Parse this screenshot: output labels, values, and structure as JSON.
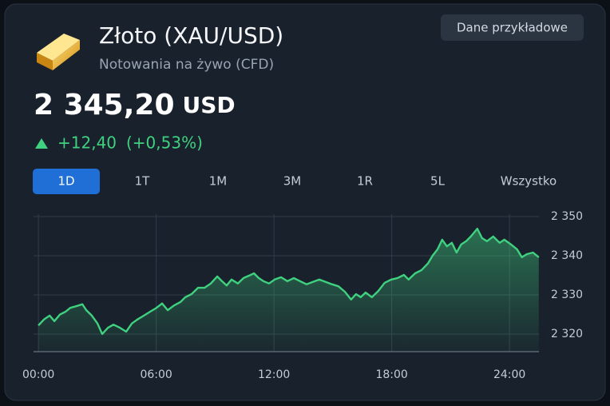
{
  "header": {
    "title": "Złoto (XAU/USD)",
    "subtitle": "Notowania na żywo (CFD)",
    "badge": "Dane przykładowe"
  },
  "quote": {
    "price": "2 345,20",
    "currency": "USD",
    "change": "+12,40",
    "change_pct": "(+0,53%)"
  },
  "tabs": {
    "items": [
      "1D",
      "1T",
      "1M",
      "3M",
      "1R",
      "5L",
      "Wszystko"
    ],
    "active_index": 0
  },
  "chart_data": {
    "type": "line",
    "color": "#3fd17f",
    "grid": true,
    "x": [
      0,
      0.28,
      0.57,
      0.81,
      1.1,
      1.38,
      1.63,
      1.91,
      2.24,
      2.44,
      2.72,
      3.01,
      3.25,
      3.54,
      3.82,
      4.15,
      4.47,
      4.76,
      5.04,
      5.37,
      5.69,
      6.02,
      6.3,
      6.59,
      6.91,
      7.24,
      7.48,
      7.8,
      8.13,
      8.46,
      8.78,
      9.11,
      9.35,
      9.59,
      9.84,
      10.16,
      10.45,
      10.73,
      10.98,
      11.22,
      11.46,
      11.75,
      12.03,
      12.36,
      12.68,
      13.01,
      13.33,
      13.66,
      13.98,
      14.31,
      14.63,
      14.96,
      15.28,
      15.61,
      15.93,
      16.18,
      16.42,
      16.67,
      16.99,
      17.32,
      17.64,
      17.97,
      18.29,
      18.62,
      18.86,
      19.19,
      19.51,
      19.84,
      20.08,
      20.33,
      20.57,
      20.81,
      21.06,
      21.3,
      21.54,
      21.79,
      22.03,
      22.36,
      22.6,
      22.85,
      23.17,
      23.5,
      23.74,
      24.07,
      24.39,
      24.63,
      24.88,
      25.2,
      25.49
    ],
    "values": [
      2322.2,
      2323.7,
      2324.7,
      2323.3,
      2325,
      2325.7,
      2326.7,
      2327.1,
      2327.6,
      2326.1,
      2324.7,
      2322.7,
      2320,
      2321.6,
      2322.4,
      2321.6,
      2320.6,
      2322.7,
      2323.7,
      2324.7,
      2325.7,
      2326.7,
      2327.8,
      2326.1,
      2327.3,
      2328.2,
      2329.4,
      2330.2,
      2331.8,
      2331.8,
      2332.9,
      2334.7,
      2333.5,
      2332.4,
      2333.9,
      2332.9,
      2334.3,
      2334.9,
      2335.5,
      2334.3,
      2333.5,
      2332.9,
      2333.9,
      2334.5,
      2333.5,
      2334.3,
      2333.5,
      2332.7,
      2333.3,
      2333.9,
      2333.3,
      2332.7,
      2332.2,
      2330.8,
      2328.8,
      2330.2,
      2329.4,
      2330.6,
      2329.4,
      2331,
      2333.1,
      2333.9,
      2334.3,
      2335.1,
      2333.9,
      2335.5,
      2336.3,
      2338,
      2340,
      2341.6,
      2344.1,
      2342.4,
      2343.3,
      2340.8,
      2342.9,
      2343.7,
      2344.9,
      2346.9,
      2344.5,
      2343.7,
      2344.9,
      2343.3,
      2344.1,
      2342.9,
      2341.6,
      2339.6,
      2340.4,
      2340.8,
      2339.6
    ],
    "xlim": [
      -0.25,
      25.5
    ],
    "ylim": [
      2315.5,
      2350.6
    ],
    "xticks": [
      {
        "value": 0,
        "label": "00:00"
      },
      {
        "value": 6,
        "label": "06:00"
      },
      {
        "value": 12,
        "label": "12:00"
      },
      {
        "value": 18,
        "label": "18:00"
      },
      {
        "value": 24,
        "label": "24:00"
      }
    ],
    "yticks": [
      {
        "value": 2320,
        "label": "2 320"
      },
      {
        "value": 2330,
        "label": "2 330"
      },
      {
        "value": 2340,
        "label": "2 340"
      },
      {
        "value": 2350,
        "label": "2 350"
      }
    ]
  }
}
